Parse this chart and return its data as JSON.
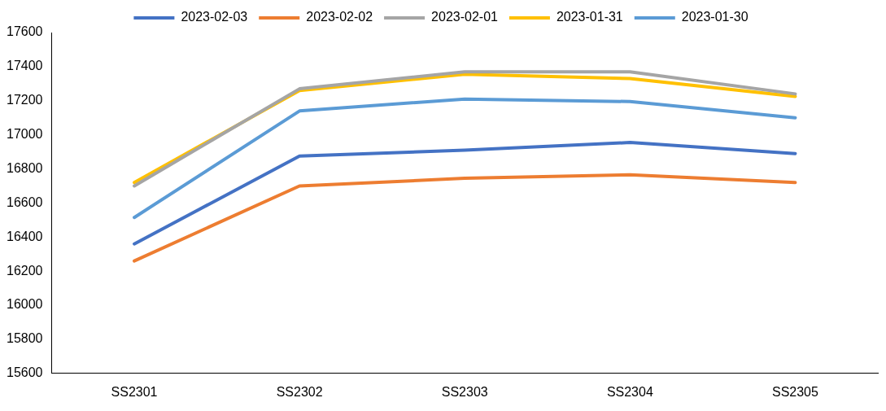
{
  "chart_data": {
    "type": "line",
    "categories": [
      "SS2301",
      "SS2302",
      "SS2303",
      "SS2304",
      "SS2305"
    ],
    "series": [
      {
        "name": "2023-02-03",
        "color": "#4472c4",
        "values": [
          16360,
          16875,
          16910,
          16955,
          16890
        ]
      },
      {
        "name": "2023-02-02",
        "color": "#ed7d31",
        "values": [
          16260,
          16700,
          16745,
          16765,
          16720
        ]
      },
      {
        "name": "2023-02-01",
        "color": "#a5a5a5",
        "values": [
          16700,
          17270,
          17370,
          17370,
          17240
        ]
      },
      {
        "name": "2023-01-31",
        "color": "#ffc000",
        "values": [
          16720,
          17260,
          17355,
          17330,
          17225
        ]
      },
      {
        "name": "2023-01-30",
        "color": "#5b9bd5",
        "values": [
          16515,
          17140,
          17210,
          17195,
          17100
        ]
      }
    ],
    "ylim": [
      15600,
      17600
    ],
    "yticks": [
      15600,
      15800,
      16000,
      16200,
      16400,
      16600,
      16800,
      17000,
      17200,
      17400,
      17600
    ],
    "grid": false,
    "legend": "top",
    "marker": "none",
    "line_style": "solid"
  }
}
